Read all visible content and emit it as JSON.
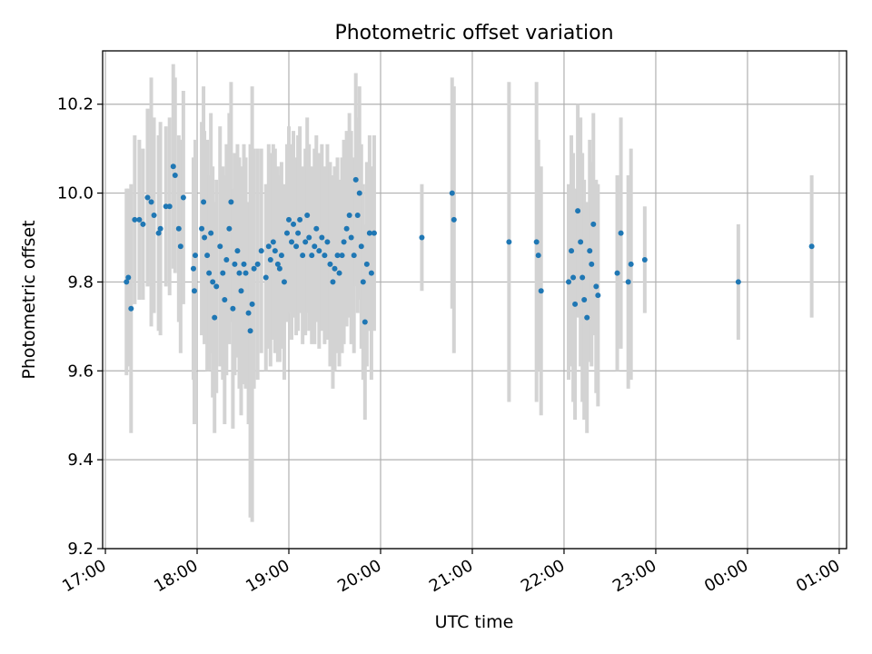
{
  "chart_data": {
    "type": "scatter",
    "title": "Photometric offset variation",
    "xlabel": "UTC time",
    "ylabel": "Photometric offset",
    "x_unit": "hours (UTC), values past 24 wrap to next day",
    "xlim": [
      16.97,
      25.08
    ],
    "ylim": [
      9.2,
      10.32
    ],
    "grid": true,
    "x_ticks": [
      {
        "value": 17,
        "label": "17:00"
      },
      {
        "value": 18,
        "label": "18:00"
      },
      {
        "value": 19,
        "label": "19:00"
      },
      {
        "value": 20,
        "label": "20:00"
      },
      {
        "value": 21,
        "label": "21:00"
      },
      {
        "value": 22,
        "label": "22:00"
      },
      {
        "value": 23,
        "label": "23:00"
      },
      {
        "value": 24,
        "label": "00:00"
      },
      {
        "value": 25,
        "label": "01:00"
      }
    ],
    "y_ticks": [
      {
        "value": 9.2,
        "label": "9.2"
      },
      {
        "value": 9.4,
        "label": "9.4"
      },
      {
        "value": 9.6,
        "label": "9.6"
      },
      {
        "value": 9.8,
        "label": "9.8"
      },
      {
        "value": 10.0,
        "label": "10.0"
      },
      {
        "value": 10.2,
        "label": "10.2"
      }
    ],
    "colors": {
      "points": "#1f77b4",
      "errorbars": "#d3d3d3"
    },
    "series": [
      {
        "points": [
          [
            17.23,
            9.8,
            0.21
          ],
          [
            17.25,
            9.81,
            0.2
          ],
          [
            17.28,
            9.74,
            0.28
          ],
          [
            17.32,
            9.94,
            0.19
          ],
          [
            17.37,
            9.94,
            0.18
          ],
          [
            17.41,
            9.93,
            0.17
          ],
          [
            17.46,
            9.99,
            0.2
          ],
          [
            17.5,
            9.98,
            0.28
          ],
          [
            17.53,
            9.95,
            0.22
          ],
          [
            17.58,
            9.91,
            0.22
          ],
          [
            17.6,
            9.92,
            0.24
          ],
          [
            17.66,
            9.97,
            0.18
          ],
          [
            17.7,
            9.97,
            0.2
          ],
          [
            17.74,
            10.06,
            0.23
          ],
          [
            17.76,
            10.04,
            0.22
          ],
          [
            17.8,
            9.92,
            0.21
          ],
          [
            17.82,
            9.88,
            0.24
          ],
          [
            17.85,
            9.99,
            0.24
          ],
          [
            17.96,
            9.83,
            0.25
          ],
          [
            17.97,
            9.78,
            0.3
          ],
          [
            17.98,
            9.86,
            0.26
          ],
          [
            18.05,
            9.92,
            0.24
          ],
          [
            18.07,
            9.98,
            0.26
          ],
          [
            18.08,
            9.9,
            0.24
          ],
          [
            18.11,
            9.86,
            0.26
          ],
          [
            18.13,
            9.82,
            0.22
          ],
          [
            18.15,
            9.91,
            0.27
          ],
          [
            18.17,
            9.8,
            0.26
          ],
          [
            18.19,
            9.72,
            0.26
          ],
          [
            18.21,
            9.79,
            0.24
          ],
          [
            18.25,
            9.88,
            0.27
          ],
          [
            18.28,
            9.82,
            0.24
          ],
          [
            18.3,
            9.76,
            0.28
          ],
          [
            18.32,
            9.85,
            0.26
          ],
          [
            18.35,
            9.92,
            0.26
          ],
          [
            18.37,
            9.98,
            0.27
          ],
          [
            18.39,
            9.74,
            0.27
          ],
          [
            18.41,
            9.84,
            0.25
          ],
          [
            18.44,
            9.87,
            0.24
          ],
          [
            18.46,
            9.82,
            0.26
          ],
          [
            18.48,
            9.78,
            0.28
          ],
          [
            18.51,
            9.84,
            0.27
          ],
          [
            18.53,
            9.82,
            0.26
          ],
          [
            18.56,
            9.73,
            0.25
          ],
          [
            18.58,
            9.69,
            0.42
          ],
          [
            18.6,
            9.75,
            0.49
          ],
          [
            18.62,
            9.83,
            0.27
          ],
          [
            18.66,
            9.84,
            0.26
          ],
          [
            18.7,
            9.87,
            0.23
          ],
          [
            18.75,
            9.81,
            0.21
          ],
          [
            18.78,
            9.88,
            0.23
          ],
          [
            18.8,
            9.85,
            0.24
          ],
          [
            18.83,
            9.89,
            0.22
          ],
          [
            18.85,
            9.87,
            0.23
          ],
          [
            18.88,
            9.84,
            0.22
          ],
          [
            18.9,
            9.83,
            0.21
          ],
          [
            18.92,
            9.86,
            0.21
          ],
          [
            18.95,
            9.8,
            0.22
          ],
          [
            18.98,
            9.91,
            0.2
          ],
          [
            19.0,
            9.94,
            0.21
          ],
          [
            19.03,
            9.89,
            0.22
          ],
          [
            19.05,
            9.93,
            0.21
          ],
          [
            19.08,
            9.88,
            0.2
          ],
          [
            19.1,
            9.91,
            0.22
          ],
          [
            19.12,
            9.94,
            0.21
          ],
          [
            19.15,
            9.86,
            0.2
          ],
          [
            19.18,
            9.89,
            0.21
          ],
          [
            19.2,
            9.95,
            0.22
          ],
          [
            19.22,
            9.9,
            0.21
          ],
          [
            19.25,
            9.86,
            0.2
          ],
          [
            19.28,
            9.88,
            0.22
          ],
          [
            19.3,
            9.92,
            0.21
          ],
          [
            19.33,
            9.87,
            0.22
          ],
          [
            19.36,
            9.9,
            0.21
          ],
          [
            19.39,
            9.86,
            0.2
          ],
          [
            19.42,
            9.89,
            0.22
          ],
          [
            19.45,
            9.84,
            0.23
          ],
          [
            19.48,
            9.8,
            0.24
          ],
          [
            19.5,
            9.83,
            0.23
          ],
          [
            19.53,
            9.86,
            0.22
          ],
          [
            19.55,
            9.82,
            0.21
          ],
          [
            19.58,
            9.86,
            0.22
          ],
          [
            19.6,
            9.89,
            0.23
          ],
          [
            19.63,
            9.92,
            0.22
          ],
          [
            19.66,
            9.95,
            0.23
          ],
          [
            19.68,
            9.9,
            0.24
          ],
          [
            19.71,
            9.86,
            0.22
          ],
          [
            19.73,
            10.03,
            0.24
          ],
          [
            19.75,
            9.95,
            0.22
          ],
          [
            19.77,
            10.0,
            0.24
          ],
          [
            19.79,
            9.88,
            0.23
          ],
          [
            19.81,
            9.8,
            0.22
          ],
          [
            19.83,
            9.71,
            0.22
          ],
          [
            19.85,
            9.84,
            0.23
          ],
          [
            19.88,
            9.91,
            0.22
          ],
          [
            19.9,
            9.82,
            0.24
          ],
          [
            19.93,
            9.91,
            0.22
          ],
          [
            20.45,
            9.9,
            0.12
          ],
          [
            20.78,
            10.0,
            0.26
          ],
          [
            20.8,
            9.94,
            0.3
          ],
          [
            21.4,
            9.89,
            0.36
          ],
          [
            21.7,
            9.89,
            0.36
          ],
          [
            21.72,
            9.86,
            0.26
          ],
          [
            21.75,
            9.78,
            0.28
          ],
          [
            22.05,
            9.8,
            0.22
          ],
          [
            22.08,
            9.87,
            0.26
          ],
          [
            22.1,
            9.81,
            0.28
          ],
          [
            22.12,
            9.75,
            0.26
          ],
          [
            22.15,
            9.96,
            0.24
          ],
          [
            22.18,
            9.89,
            0.28
          ],
          [
            22.2,
            9.81,
            0.28
          ],
          [
            22.22,
            9.76,
            0.27
          ],
          [
            22.25,
            9.72,
            0.26
          ],
          [
            22.28,
            9.87,
            0.25
          ],
          [
            22.3,
            9.84,
            0.23
          ],
          [
            22.32,
            9.93,
            0.25
          ],
          [
            22.35,
            9.79,
            0.24
          ],
          [
            22.37,
            9.77,
            0.25
          ],
          [
            22.58,
            9.82,
            0.22
          ],
          [
            22.62,
            9.91,
            0.26
          ],
          [
            22.7,
            9.8,
            0.24
          ],
          [
            22.73,
            9.84,
            0.26
          ],
          [
            22.88,
            9.85,
            0.12
          ],
          [
            23.9,
            9.8,
            0.13
          ],
          [
            24.7,
            9.88,
            0.16
          ]
        ]
      }
    ]
  }
}
